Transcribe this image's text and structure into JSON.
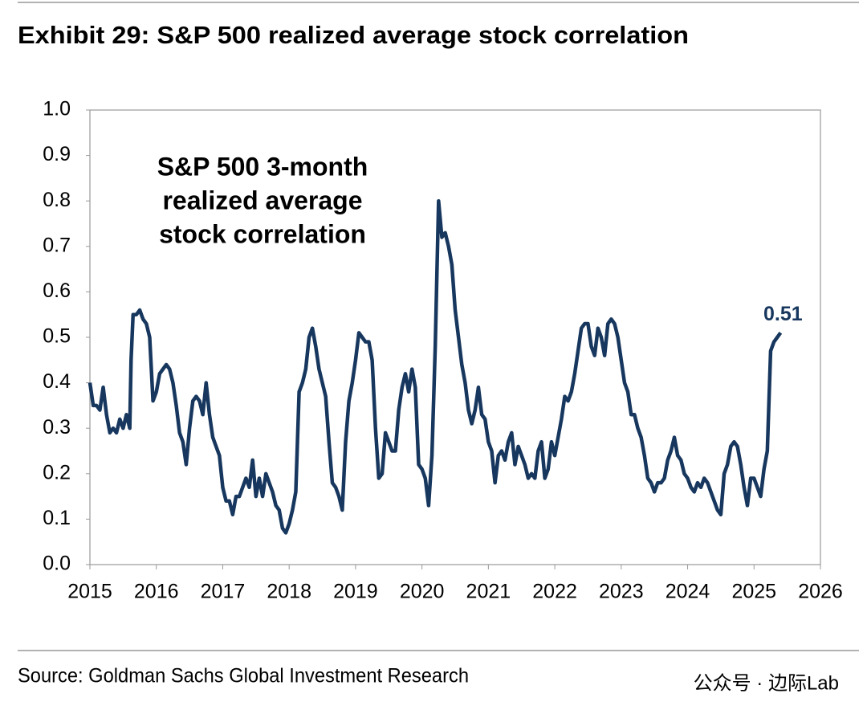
{
  "chart_data": {
    "type": "line",
    "title": "Exhibit 29: S&P 500 realized average stock correlation",
    "annotation": [
      "S&P 500 3-month",
      "realized average",
      "stock correlation"
    ],
    "source": "Source: Goldman Sachs Global Investment Research",
    "watermark": "公众号 · 边际Lab",
    "xlim": [
      2015,
      2026
    ],
    "xticks": [
      2015,
      2016,
      2017,
      2018,
      2019,
      2020,
      2021,
      2022,
      2023,
      2024,
      2025,
      2026
    ],
    "ylim": [
      0,
      1
    ],
    "yticks": [
      {
        "value": 0,
        "label": "0.0"
      },
      0.1,
      0.2,
      0.3,
      0.4,
      0.5,
      0.6,
      0.7,
      0.8,
      0.9,
      {
        "value": 1,
        "label": "1.0"
      }
    ],
    "grid": false,
    "series": [
      {
        "name": "S&P 500 3-month realized average stock correlation",
        "color": "#17375e",
        "x": [
          2015,
          2015.05,
          2015.1,
          2015.15,
          2015.2,
          2015.25,
          2015.3,
          2015.35,
          2015.4,
          2015.45,
          2015.5,
          2015.55,
          2015.6,
          2015.62,
          2015.65,
          2015.7,
          2015.75,
          2015.8,
          2015.85,
          2015.9,
          2015.95,
          2016,
          2016.05,
          2016.1,
          2016.15,
          2016.2,
          2016.25,
          2016.3,
          2016.35,
          2016.4,
          2016.45,
          2016.5,
          2016.55,
          2016.6,
          2016.65,
          2016.7,
          2016.75,
          2016.8,
          2016.85,
          2016.9,
          2016.95,
          2017,
          2017.05,
          2017.1,
          2017.15,
          2017.2,
          2017.25,
          2017.3,
          2017.35,
          2017.4,
          2017.45,
          2017.5,
          2017.55,
          2017.6,
          2017.65,
          2017.7,
          2017.75,
          2017.8,
          2017.85,
          2017.9,
          2017.95,
          2018,
          2018.05,
          2018.1,
          2018.15,
          2018.2,
          2018.25,
          2018.3,
          2018.35,
          2018.4,
          2018.45,
          2018.5,
          2018.55,
          2018.6,
          2018.65,
          2018.7,
          2018.75,
          2018.8,
          2018.85,
          2018.9,
          2018.95,
          2019,
          2019.05,
          2019.1,
          2019.15,
          2019.2,
          2019.25,
          2019.3,
          2019.35,
          2019.4,
          2019.45,
          2019.5,
          2019.55,
          2019.6,
          2019.65,
          2019.7,
          2019.75,
          2019.8,
          2019.85,
          2019.9,
          2019.95,
          2020,
          2020.05,
          2020.1,
          2020.15,
          2020.2,
          2020.25,
          2020.3,
          2020.35,
          2020.4,
          2020.45,
          2020.5,
          2020.55,
          2020.6,
          2020.65,
          2020.7,
          2020.75,
          2020.8,
          2020.85,
          2020.9,
          2020.95,
          2021,
          2021.05,
          2021.1,
          2021.15,
          2021.2,
          2021.25,
          2021.3,
          2021.35,
          2021.4,
          2021.45,
          2021.5,
          2021.55,
          2021.6,
          2021.65,
          2021.7,
          2021.75,
          2021.8,
          2021.85,
          2021.9,
          2021.95,
          2022,
          2022.05,
          2022.1,
          2022.15,
          2022.2,
          2022.25,
          2022.3,
          2022.35,
          2022.4,
          2022.45,
          2022.5,
          2022.55,
          2022.6,
          2022.65,
          2022.7,
          2022.75,
          2022.8,
          2022.85,
          2022.9,
          2022.95,
          2023,
          2023.05,
          2023.1,
          2023.15,
          2023.2,
          2023.25,
          2023.3,
          2023.35,
          2023.4,
          2023.45,
          2023.5,
          2023.55,
          2023.6,
          2023.65,
          2023.7,
          2023.75,
          2023.8,
          2023.85,
          2023.9,
          2023.95,
          2024,
          2024.05,
          2024.1,
          2024.15,
          2024.2,
          2024.25,
          2024.3,
          2024.35,
          2024.4,
          2024.45,
          2024.5,
          2024.55,
          2024.6,
          2024.65,
          2024.7,
          2024.75,
          2024.8,
          2024.85,
          2024.9,
          2024.95,
          2025,
          2025.05,
          2025.1,
          2025.15,
          2025.2,
          2025.25,
          2025.3,
          2025.35,
          2025.4
        ],
        "values": [
          0.4,
          0.35,
          0.35,
          0.34,
          0.39,
          0.33,
          0.29,
          0.3,
          0.29,
          0.32,
          0.3,
          0.33,
          0.3,
          0.45,
          0.55,
          0.55,
          0.56,
          0.54,
          0.53,
          0.5,
          0.36,
          0.38,
          0.42,
          0.43,
          0.44,
          0.43,
          0.4,
          0.35,
          0.29,
          0.27,
          0.22,
          0.3,
          0.36,
          0.37,
          0.36,
          0.33,
          0.4,
          0.33,
          0.28,
          0.26,
          0.24,
          0.17,
          0.14,
          0.14,
          0.11,
          0.15,
          0.15,
          0.17,
          0.19,
          0.17,
          0.23,
          0.15,
          0.19,
          0.15,
          0.2,
          0.18,
          0.16,
          0.13,
          0.12,
          0.08,
          0.07,
          0.09,
          0.12,
          0.16,
          0.38,
          0.4,
          0.43,
          0.5,
          0.52,
          0.48,
          0.43,
          0.4,
          0.37,
          0.27,
          0.18,
          0.17,
          0.15,
          0.12,
          0.27,
          0.36,
          0.4,
          0.45,
          0.51,
          0.5,
          0.49,
          0.49,
          0.45,
          0.3,
          0.19,
          0.2,
          0.29,
          0.27,
          0.25,
          0.25,
          0.34,
          0.39,
          0.42,
          0.38,
          0.43,
          0.39,
          0.22,
          0.21,
          0.19,
          0.13,
          0.24,
          0.48,
          0.8,
          0.72,
          0.73,
          0.7,
          0.66,
          0.56,
          0.5,
          0.44,
          0.4,
          0.34,
          0.31,
          0.34,
          0.39,
          0.33,
          0.32,
          0.27,
          0.25,
          0.18,
          0.24,
          0.25,
          0.23,
          0.27,
          0.29,
          0.22,
          0.26,
          0.24,
          0.22,
          0.19,
          0.2,
          0.19,
          0.25,
          0.27,
          0.19,
          0.21,
          0.27,
          0.24,
          0.28,
          0.32,
          0.37,
          0.36,
          0.38,
          0.42,
          0.47,
          0.52,
          0.53,
          0.53,
          0.48,
          0.46,
          0.52,
          0.5,
          0.46,
          0.53,
          0.54,
          0.53,
          0.5,
          0.45,
          0.4,
          0.38,
          0.33,
          0.33,
          0.3,
          0.28,
          0.24,
          0.19,
          0.18,
          0.16,
          0.18,
          0.18,
          0.19,
          0.23,
          0.25,
          0.28,
          0.24,
          0.23,
          0.2,
          0.19,
          0.17,
          0.16,
          0.18,
          0.17,
          0.19,
          0.18,
          0.16,
          0.14,
          0.12,
          0.11,
          0.2,
          0.22,
          0.26,
          0.27,
          0.26,
          0.22,
          0.17,
          0.13,
          0.19,
          0.19,
          0.17,
          0.15,
          0.21,
          0.25,
          0.47,
          0.49,
          0.5,
          0.51
        ]
      }
    ]
  }
}
